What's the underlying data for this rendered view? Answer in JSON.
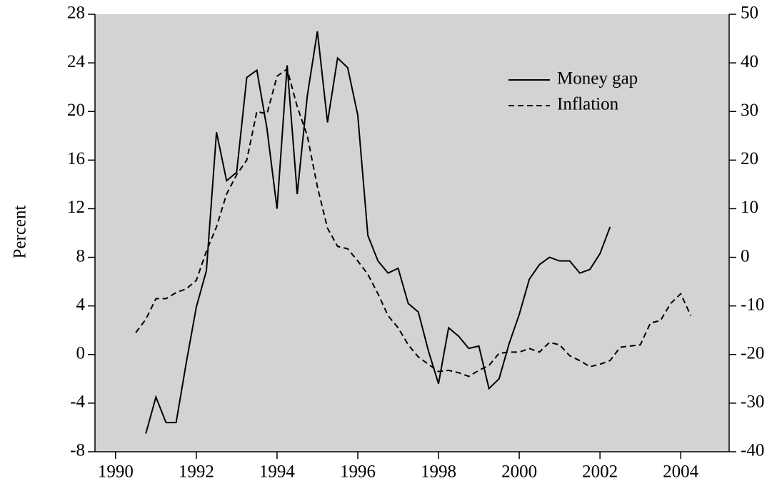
{
  "chart_data": {
    "type": "line",
    "y_label": "Percent",
    "x": [
      1990.5,
      1990.75,
      1991,
      1991.25,
      1991.5,
      1991.75,
      1992,
      1992.25,
      1992.5,
      1992.75,
      1993,
      1993.25,
      1993.5,
      1993.75,
      1994,
      1994.25,
      1994.5,
      1994.75,
      1995,
      1995.25,
      1995.5,
      1995.75,
      1996,
      1996.25,
      1996.5,
      1996.75,
      1997,
      1997.25,
      1997.5,
      1997.75,
      1998,
      1998.25,
      1998.5,
      1998.75,
      1999,
      1999.25,
      1999.5,
      1999.75,
      2000,
      2000.25,
      2000.5,
      2000.75,
      2001,
      2001.25,
      2001.5,
      2001.75,
      2002,
      2002.25,
      2002.5,
      2002.75,
      2003,
      2003.25,
      2003.5,
      2003.75,
      2004,
      2004.25
    ],
    "series": [
      {
        "name": "Money gap",
        "color": "#000000",
        "dash": false,
        "values": [
          null,
          -6.5,
          -3.5,
          -5.6,
          -5.6,
          -0.7,
          3.9,
          6.9,
          18.3,
          14.3,
          15.0,
          22.8,
          23.4,
          18.6,
          12.0,
          23.8,
          13.2,
          21.3,
          26.6,
          19.1,
          24.4,
          23.6,
          19.7,
          9.8,
          7.7,
          6.7,
          7.1,
          4.2,
          3.5,
          0.3,
          -2.4,
          2.2,
          1.5,
          0.5,
          0.7,
          -2.8,
          -2.0,
          0.9,
          3.3,
          6.2,
          7.4,
          8.0,
          7.7,
          7.7,
          6.7,
          7.0,
          8.3,
          10.5,
          null,
          null,
          null,
          null,
          null,
          null,
          null,
          null
        ]
      },
      {
        "name": "Inflation",
        "color": "#000000",
        "dash": true,
        "values": [
          1.8,
          2.9,
          4.6,
          4.6,
          5.1,
          5.4,
          6.1,
          8.5,
          10.5,
          13.2,
          14.8,
          16.0,
          20.0,
          19.8,
          22.9,
          23.5,
          20.4,
          18.0,
          13.8,
          10.4,
          8.9,
          8.7,
          7.7,
          6.6,
          5.0,
          3.2,
          2.2,
          0.8,
          -0.2,
          -0.8,
          -1.4,
          -1.3,
          -1.5,
          -1.8,
          -1.3,
          -0.9,
          0.1,
          0.2,
          0.2,
          0.5,
          0.2,
          1.0,
          0.8,
          -0.1,
          -0.5,
          -1.0,
          -0.8,
          -0.5,
          0.6,
          0.7,
          0.8,
          2.6,
          2.8,
          4.2,
          5.0,
          3.2
        ]
      }
    ],
    "xlim": [
      1989.49,
      2005.2
    ],
    "xticks": [
      1990,
      1992,
      1994,
      1996,
      1998,
      2000,
      2002,
      2004
    ],
    "ylim": [
      -8,
      28
    ],
    "yticks": [
      -8,
      -4,
      0,
      4,
      8,
      12,
      16,
      20,
      24,
      28
    ],
    "y2lim": [
      -40,
      50
    ],
    "y2ticks": [
      -40,
      -30,
      -20,
      -10,
      0,
      10,
      20,
      30,
      40,
      50
    ],
    "legend": "upper right",
    "plot_background": "#d3d3d3"
  }
}
